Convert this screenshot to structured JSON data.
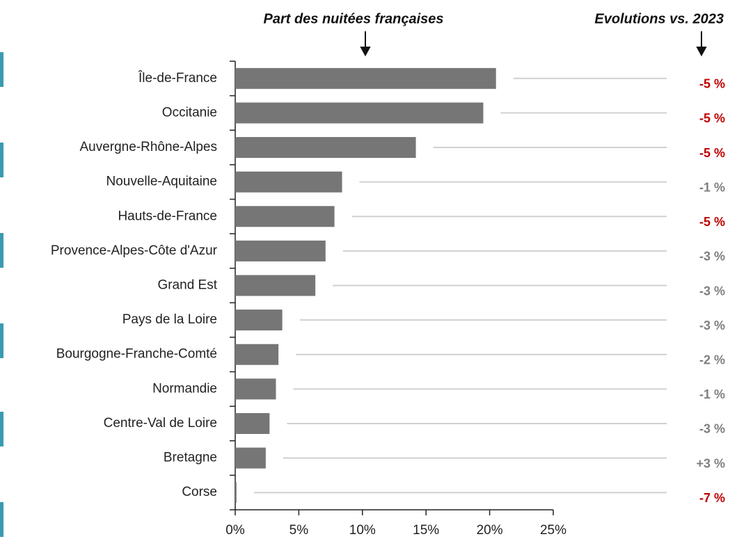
{
  "chart_data": {
    "type": "bar",
    "orientation": "horizontal",
    "title": "Part des nuitées françaises",
    "categories": [
      "Île-de-France",
      "Occitanie",
      "Auvergne-Rhône-Alpes",
      "Nouvelle-Aquitaine",
      "Hauts-de-France",
      "Provence-Alpes-Côte d'Azur",
      "Grand Est",
      "Pays de la Loire",
      "Bourgogne-Franche-Comté",
      "Normandie",
      "Centre-Val de Loire",
      "Bretagne",
      "Corse"
    ],
    "values": [
      20.5,
      19.5,
      14.2,
      8.4,
      7.8,
      7.1,
      6.3,
      3.7,
      3.4,
      3.2,
      2.7,
      2.4,
      0.1
    ],
    "color": "#767676",
    "xlim": [
      0,
      25
    ],
    "xticks": [
      {
        "value": 0,
        "label": "0%"
      },
      {
        "value": 5,
        "label": "5%"
      },
      {
        "value": 10,
        "label": "10%"
      },
      {
        "value": 15,
        "label": "15%"
      },
      {
        "value": 20,
        "label": "20%"
      },
      {
        "value": 25,
        "label": "25%"
      }
    ],
    "evolutions": {
      "title": "Evolutions vs. 2023",
      "values": [
        -5,
        -5,
        -5,
        -1,
        -5,
        -3,
        -3,
        -3,
        -2,
        -1,
        -3,
        3,
        -7
      ],
      "value_labels": [
        "-5 %",
        "-5 %",
        "-5 %",
        "-1 %",
        "-5 %",
        "-3 %",
        "-3 %",
        "-3 %",
        "-2 %",
        "-1 %",
        "-3 %",
        "+3 %",
        "-7 %"
      ],
      "colors": [
        "#c00000",
        "#c00000",
        "#c00000",
        "#7f7f7f",
        "#c00000",
        "#7f7f7f",
        "#7f7f7f",
        "#7f7f7f",
        "#7f7f7f",
        "#7f7f7f",
        "#7f7f7f",
        "#7f7f7f",
        "#c00000"
      ]
    }
  }
}
